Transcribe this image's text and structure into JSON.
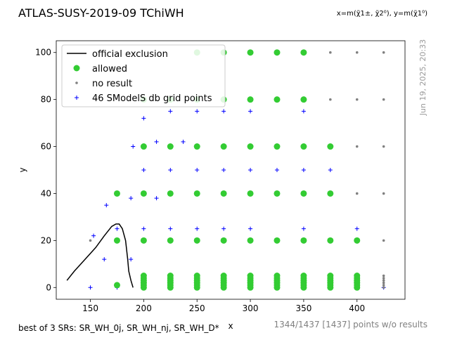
{
  "chart_data": {
    "type": "scatter",
    "title": "ATLAS-SUSY-2019-09 TChiWH",
    "axis_note": "x=m(χ̃1±, χ̃2⁰), y=m(χ̃1⁰)",
    "xlabel": "x",
    "ylabel": "y",
    "xlim": [
      118,
      445
    ],
    "ylim": [
      -5,
      105
    ],
    "xticks": [
      150,
      200,
      250,
      300,
      350,
      400
    ],
    "yticks": [
      0,
      20,
      40,
      60,
      80,
      100
    ],
    "legend_placement": "top-left",
    "legend": [
      {
        "key": "official",
        "label": "official exclusion"
      },
      {
        "key": "allowed",
        "label": "allowed"
      },
      {
        "key": "noresult",
        "label": "no result"
      },
      {
        "key": "grid",
        "label": "46 SModelS db grid points"
      }
    ],
    "colors": {
      "allowed": "#33cc33",
      "noresult": "#808080",
      "grid": "#0000ff",
      "official": "#000000"
    },
    "timestamp": "Jun 19, 2025, 20:33",
    "footer_left": "best of 3 SRs: SR_WH_0j, SR_WH_nj, SR_WH_D*",
    "footer_right": "1344/1437 [1437] points w/o results",
    "official_exclusion": [
      [
        128,
        3
      ],
      [
        135,
        7
      ],
      [
        145,
        12
      ],
      [
        155,
        17
      ],
      [
        163,
        22
      ],
      [
        170,
        26
      ],
      [
        174,
        27
      ],
      [
        177,
        27
      ],
      [
        180,
        25
      ],
      [
        183,
        20
      ],
      [
        185,
        12
      ],
      [
        186,
        7
      ],
      [
        188,
        3
      ],
      [
        190,
        0
      ]
    ],
    "allowed_x": [
      175,
      200,
      225,
      250,
      275,
      300,
      325,
      350,
      375,
      400
    ],
    "allowed_y_values": [
      0,
      1,
      2,
      3,
      4,
      5,
      20,
      40,
      60,
      80,
      100
    ],
    "noresult_points": [
      [
        150,
        20
      ],
      [
        425,
        0
      ],
      [
        425,
        1
      ],
      [
        425,
        2
      ],
      [
        425,
        3
      ],
      [
        425,
        4
      ],
      [
        425,
        5
      ],
      [
        425,
        20
      ],
      [
        425,
        40
      ],
      [
        425,
        60
      ],
      [
        425,
        80
      ],
      [
        425,
        100
      ],
      [
        400,
        60
      ],
      [
        400,
        80
      ],
      [
        400,
        100
      ],
      [
        375,
        80
      ],
      [
        375,
        100
      ],
      [
        400,
        40
      ],
      [
        375,
        40
      ]
    ],
    "grid_points": [
      [
        150,
        0
      ],
      [
        175,
        0
      ],
      [
        200,
        0
      ],
      [
        225,
        0
      ],
      [
        250,
        0
      ],
      [
        275,
        0
      ],
      [
        300,
        0
      ],
      [
        325,
        0
      ],
      [
        350,
        0
      ],
      [
        375,
        0
      ],
      [
        400,
        0
      ],
      [
        425,
        0
      ],
      [
        153,
        22
      ],
      [
        163,
        12
      ],
      [
        175,
        25
      ],
      [
        188,
        12
      ],
      [
        200,
        25
      ],
      [
        225,
        25
      ],
      [
        250,
        25
      ],
      [
        275,
        25
      ],
      [
        300,
        25
      ],
      [
        350,
        25
      ],
      [
        400,
        25
      ],
      [
        165,
        35
      ],
      [
        188,
        38
      ],
      [
        212,
        38
      ],
      [
        200,
        50
      ],
      [
        225,
        50
      ],
      [
        250,
        50
      ],
      [
        275,
        50
      ],
      [
        300,
        50
      ],
      [
        325,
        50
      ],
      [
        350,
        50
      ],
      [
        375,
        50
      ],
      [
        190,
        60
      ],
      [
        212,
        62
      ],
      [
        237,
        62
      ],
      [
        200,
        72
      ],
      [
        225,
        75
      ],
      [
        250,
        75
      ],
      [
        275,
        75
      ],
      [
        300,
        75
      ],
      [
        350,
        75
      ],
      [
        300,
        100
      ],
      [
        350,
        100
      ],
      [
        225,
        80
      ]
    ]
  }
}
